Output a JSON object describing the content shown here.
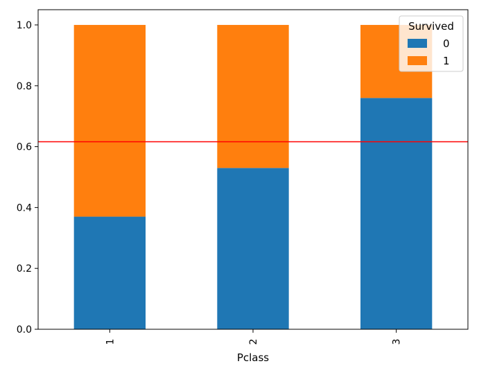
{
  "chart_data": {
    "type": "bar",
    "stacked": true,
    "categories": [
      "1",
      "2",
      "3"
    ],
    "series": [
      {
        "name": "0",
        "values": [
          0.37,
          0.53,
          0.76
        ],
        "color": "#1f77b4"
      },
      {
        "name": "1",
        "values": [
          0.63,
          0.47,
          0.24
        ],
        "color": "#ff7f0e"
      }
    ],
    "xlabel": "Pclass",
    "ylabel": "",
    "ylim": [
      0,
      1.05
    ],
    "yticks": [
      0.0,
      0.2,
      0.4,
      0.6,
      0.8,
      1.0
    ],
    "ytick_labels": [
      "0.0",
      "0.2",
      "0.4",
      "0.6",
      "0.8",
      "1.0"
    ],
    "xtick_rotation": "vertical",
    "grid": false,
    "legend": {
      "title": "Survived",
      "placement": "top-right"
    },
    "reference_line": {
      "orientation": "horizontal",
      "y": 0.616,
      "color": "#ff0000"
    }
  }
}
